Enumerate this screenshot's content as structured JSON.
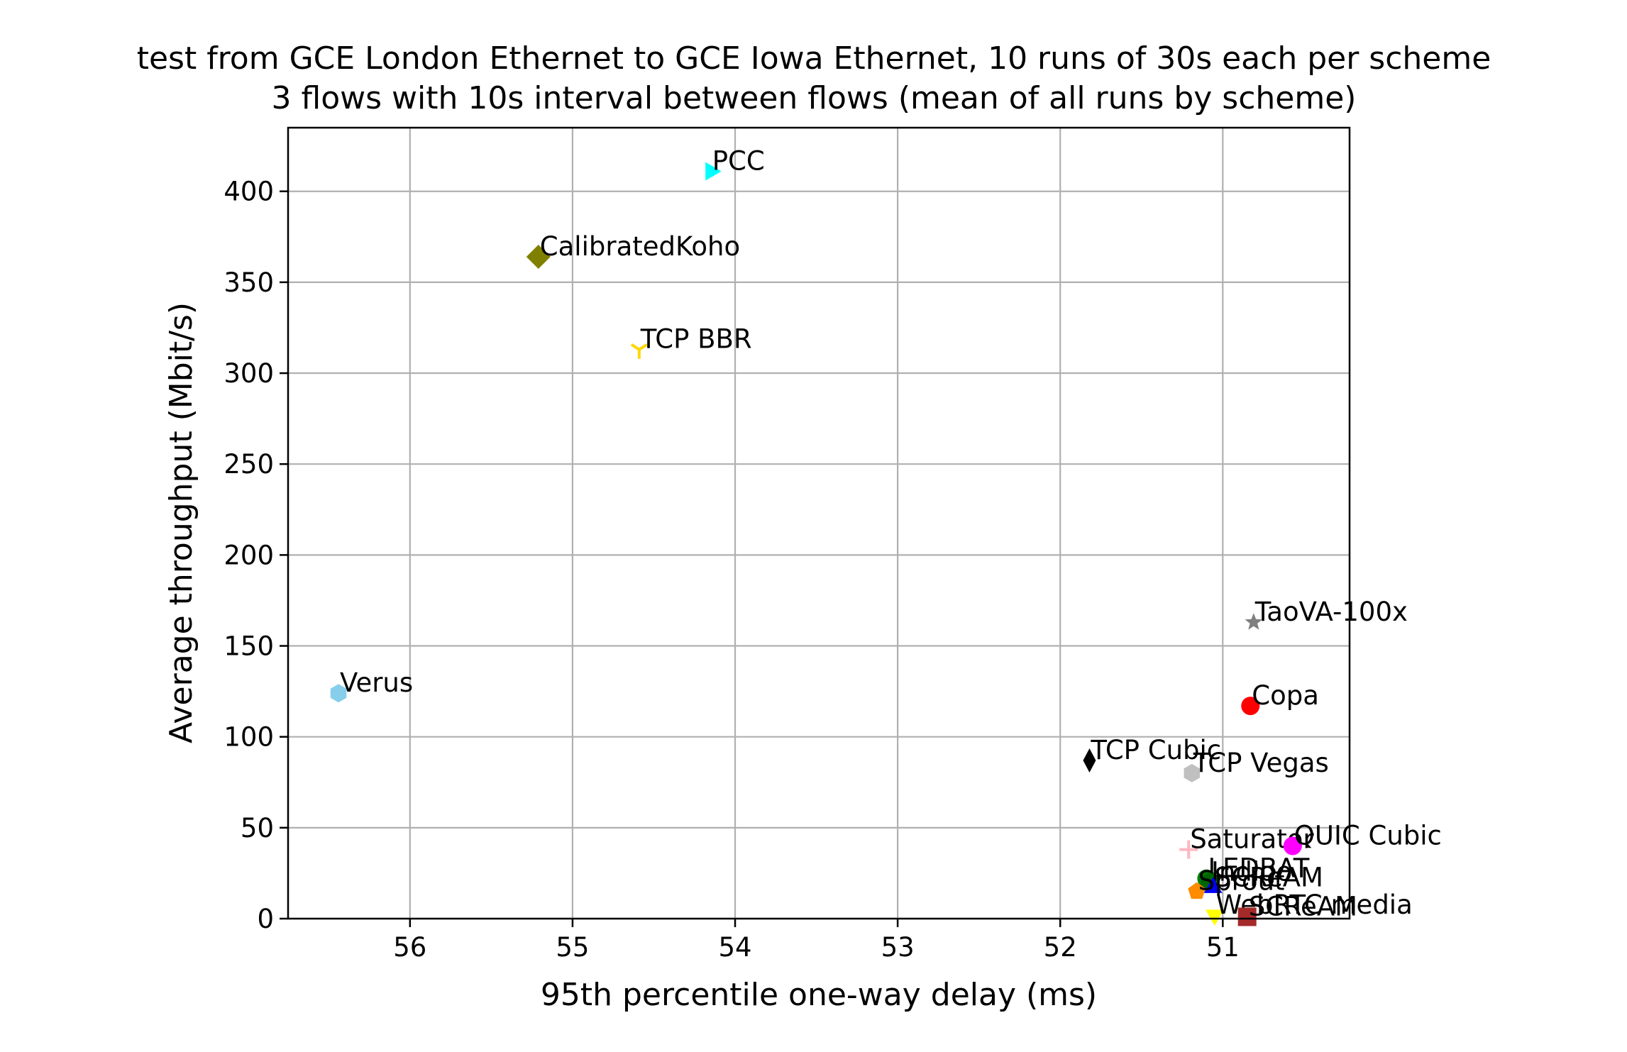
{
  "chart_data": {
    "type": "scatter",
    "title": "test from GCE London Ethernet to GCE Iowa Ethernet, 10 runs of 30s each per scheme",
    "subtitle": "3 flows with 10s interval between flows (mean of all runs by scheme)",
    "xlabel": "95th percentile one-way delay (ms)",
    "ylabel": "Average throughput (Mbit/s)",
    "xlim": [
      56.75,
      50.22
    ],
    "ylim": [
      0,
      435
    ],
    "x_inverted": true,
    "xticks": [
      56,
      55,
      54,
      53,
      52,
      51
    ],
    "yticks": [
      0,
      50,
      100,
      150,
      200,
      250,
      300,
      350,
      400
    ],
    "grid": true,
    "points": [
      {
        "name": "PCC",
        "x": 54.15,
        "y": 411,
        "marker": "triangle-right",
        "color": "#00ffff"
      },
      {
        "name": "CalibratedKoho",
        "x": 55.21,
        "y": 364,
        "marker": "diamond",
        "color": "#808000"
      },
      {
        "name": "TCP BBR",
        "x": 54.59,
        "y": 313,
        "marker": "tri-down",
        "color": "#ffd700"
      },
      {
        "name": "Verus",
        "x": 56.44,
        "y": 124,
        "marker": "hexagon",
        "color": "#87ceeb"
      },
      {
        "name": "TaoVA-100x",
        "x": 50.81,
        "y": 163,
        "marker": "star",
        "color": "#808080"
      },
      {
        "name": "Copa",
        "x": 50.83,
        "y": 117,
        "marker": "circle",
        "color": "#ff0000"
      },
      {
        "name": "TCP Cubic",
        "x": 51.82,
        "y": 87,
        "marker": "thin-diamond",
        "color": "#000000"
      },
      {
        "name": "TCP Vegas",
        "x": 51.19,
        "y": 80,
        "marker": "hexagon",
        "color": "#c0c0c0"
      },
      {
        "name": "Saturator",
        "x": 51.21,
        "y": 38,
        "marker": "plus",
        "color": "#ffb6c1"
      },
      {
        "name": "QUIC Cubic",
        "x": 50.57,
        "y": 40,
        "marker": "circle",
        "color": "#ff00ff"
      },
      {
        "name": "LEDBAT",
        "x": 51.1,
        "y": 22,
        "marker": "circle",
        "color": "#008000"
      },
      {
        "name": "Indigo",
        "x": 51.08,
        "y": 20,
        "marker": "circle",
        "color": "#006400"
      },
      {
        "name": "SCReAM",
        "x": 51.06,
        "y": 17,
        "marker": "triangle-up",
        "color": "#0000ff"
      },
      {
        "name": "Sprout",
        "x": 51.16,
        "y": 15,
        "marker": "pentagon",
        "color": "#ff8c00"
      },
      {
        "name": "WebRTC media",
        "x": 51.05,
        "y": 2,
        "marker": "triangle-down",
        "color": "#ffff00"
      },
      {
        "name": "SCReAM",
        "x": 50.85,
        "y": 1,
        "marker": "square",
        "color": "#a52a2a"
      }
    ]
  }
}
